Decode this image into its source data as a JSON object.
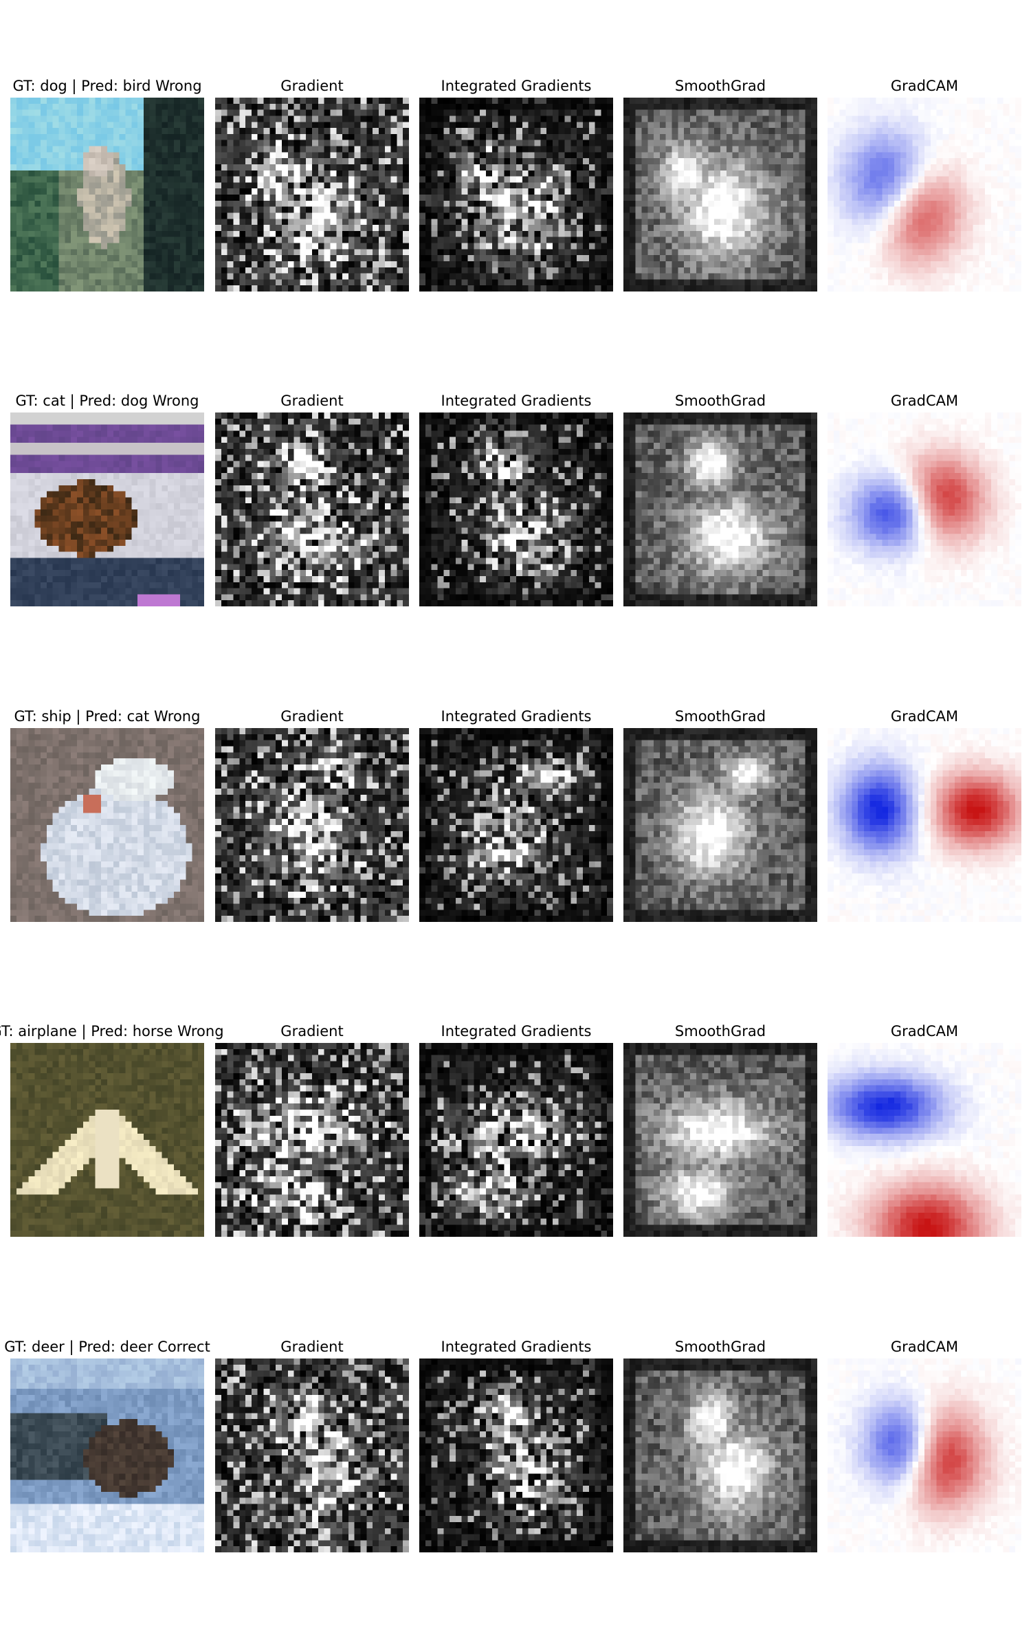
{
  "figure": {
    "rows": [
      {
        "sample_title": "GT: dog | Pred: bird Wrong",
        "sample_image_icon": "cifar-dog-photo",
        "panels": [
          "Gradient",
          "Integrated Gradients",
          "SmoothGrad",
          "GradCAM"
        ]
      },
      {
        "sample_title": "GT: cat | Pred: dog Wrong",
        "sample_image_icon": "cifar-cat-photo",
        "panels": [
          "Gradient",
          "Integrated Gradients",
          "SmoothGrad",
          "GradCAM"
        ]
      },
      {
        "sample_title": "GT: ship | Pred: cat Wrong",
        "sample_image_icon": "cifar-ship-photo",
        "panels": [
          "Gradient",
          "Integrated Gradients",
          "SmoothGrad",
          "GradCAM"
        ]
      },
      {
        "sample_title": "GT: airplane | Pred: horse Wrong",
        "sample_image_icon": "cifar-airplane-photo",
        "panels": [
          "Gradient",
          "Integrated Gradients",
          "SmoothGrad",
          "GradCAM"
        ]
      },
      {
        "sample_title": "GT: deer | Pred: deer Correct",
        "sample_image_icon": "cifar-deer-photo",
        "panels": [
          "Gradient",
          "Integrated Gradients",
          "SmoothGrad",
          "GradCAM"
        ]
      }
    ]
  }
}
